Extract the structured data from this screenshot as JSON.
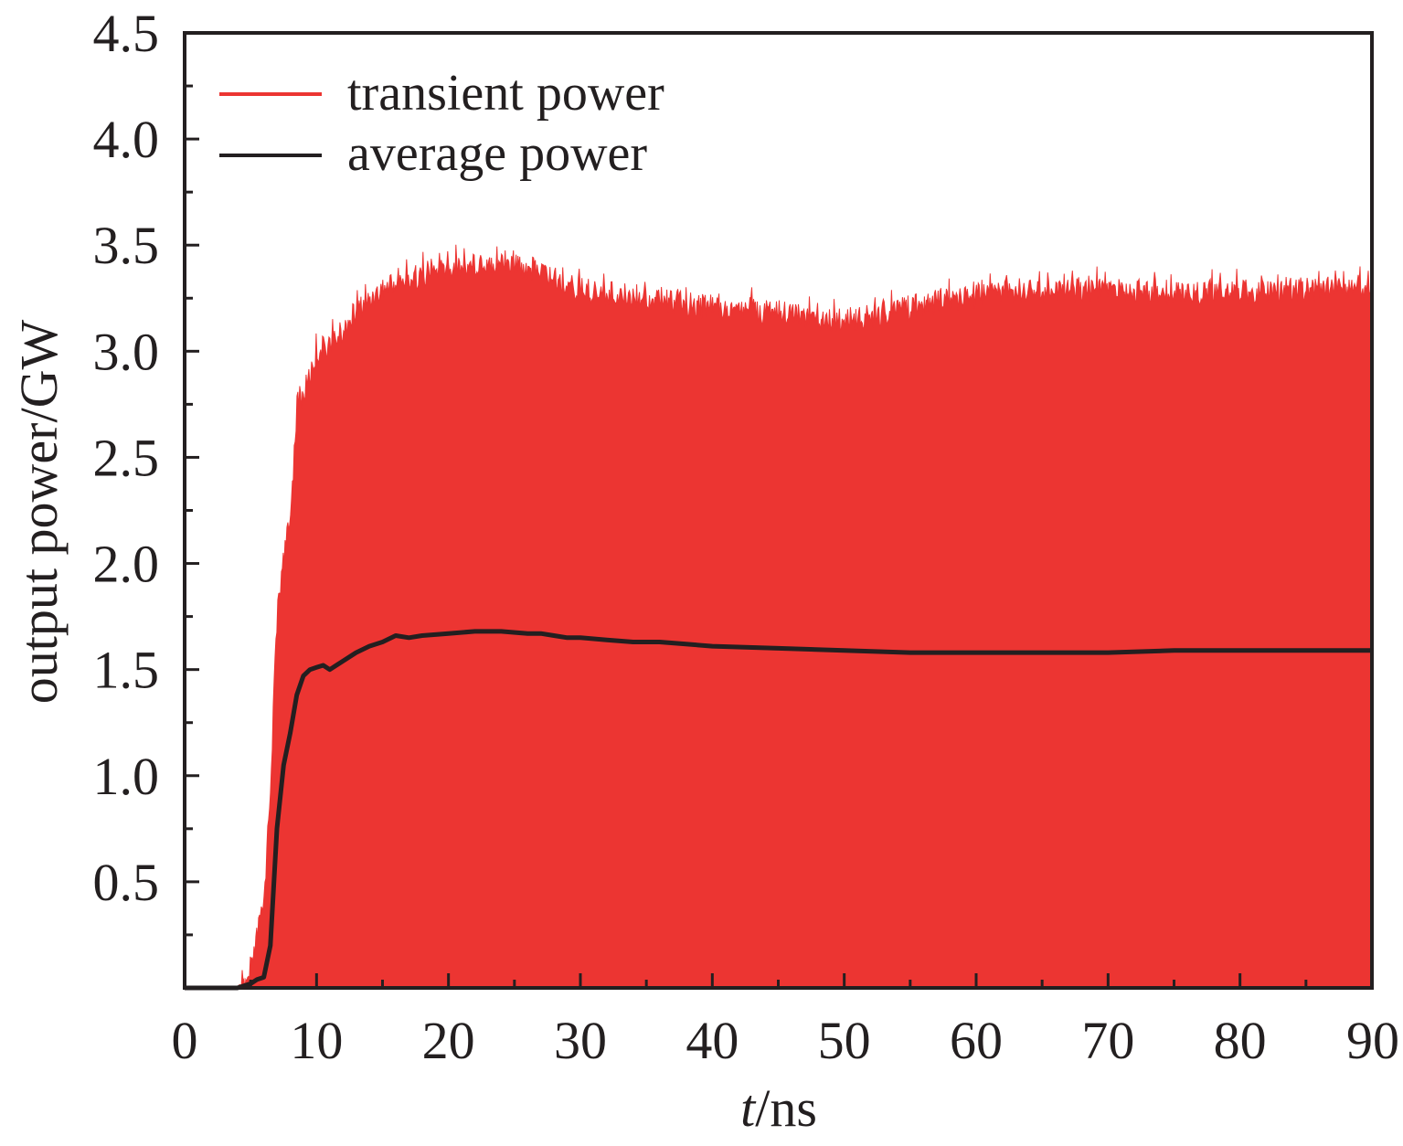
{
  "chart_data": {
    "type": "line",
    "xlabel_italic": "t",
    "xlabel_rest": "/ns",
    "ylabel": "output power/GW",
    "xlim": [
      0,
      90
    ],
    "ylim": [
      0,
      4.5
    ],
    "x_ticks": [
      "0",
      "10",
      "20",
      "30",
      "40",
      "50",
      "60",
      "70",
      "80",
      "90"
    ],
    "y_ticks": [
      "0.5",
      "1.0",
      "1.5",
      "2.0",
      "2.5",
      "3.0",
      "3.5",
      "4.0",
      "4.5"
    ],
    "legend_position": "top-left",
    "colors": {
      "transient": "#ec3532",
      "average": "#231f20"
    },
    "series": [
      {
        "name": "transient power",
        "style": "oscillating envelope (filled from 0 to upper envelope)",
        "x": [
          0,
          4,
          4.5,
          5,
          5.5,
          6,
          6.5,
          7,
          7.5,
          8,
          8.5,
          9,
          9.5,
          10,
          11,
          12,
          13,
          14,
          15,
          16,
          17,
          18,
          19,
          20,
          21,
          22,
          23,
          24,
          25,
          26,
          27,
          28,
          29,
          30,
          32,
          34,
          36,
          38,
          40,
          42,
          44,
          46,
          48,
          50,
          52,
          54,
          56,
          58,
          60,
          62,
          64,
          66,
          68,
          70,
          72,
          74,
          76,
          78,
          80,
          82,
          84,
          86,
          88,
          90
        ],
        "envelope_upper": [
          0,
          0,
          0.05,
          0.12,
          0.3,
          0.45,
          1.0,
          1.8,
          2.1,
          2.25,
          2.8,
          2.85,
          2.95,
          3.05,
          3.1,
          3.15,
          3.25,
          3.3,
          3.35,
          3.38,
          3.4,
          3.42,
          3.44,
          3.45,
          3.46,
          3.47,
          3.48,
          3.48,
          3.47,
          3.45,
          3.44,
          3.4,
          3.37,
          3.35,
          3.33,
          3.32,
          3.3,
          3.28,
          3.27,
          3.26,
          3.25,
          3.24,
          3.22,
          3.2,
          3.22,
          3.25,
          3.28,
          3.3,
          3.32,
          3.34,
          3.35,
          3.35,
          3.35,
          3.35,
          3.34,
          3.34,
          3.34,
          3.34,
          3.34,
          3.34,
          3.35,
          3.35,
          3.36,
          3.36
        ]
      },
      {
        "name": "average power",
        "x": [
          0,
          4,
          5,
          5.5,
          6,
          6.5,
          7,
          7.5,
          8,
          8.5,
          9,
          9.5,
          10,
          10.5,
          11,
          11.5,
          12,
          13,
          14,
          15,
          16,
          17,
          18,
          20,
          22,
          24,
          26,
          27,
          28,
          29,
          30,
          32,
          34,
          36,
          38,
          40,
          45,
          50,
          55,
          60,
          65,
          70,
          75,
          80,
          85,
          90
        ],
        "y": [
          0,
          0,
          0.02,
          0.04,
          0.05,
          0.2,
          0.75,
          1.05,
          1.2,
          1.38,
          1.47,
          1.5,
          1.51,
          1.52,
          1.5,
          1.52,
          1.54,
          1.58,
          1.61,
          1.63,
          1.66,
          1.65,
          1.66,
          1.67,
          1.68,
          1.68,
          1.67,
          1.67,
          1.66,
          1.65,
          1.65,
          1.64,
          1.63,
          1.63,
          1.62,
          1.61,
          1.6,
          1.59,
          1.58,
          1.58,
          1.58,
          1.58,
          1.59,
          1.59,
          1.59,
          1.59
        ]
      }
    ]
  }
}
